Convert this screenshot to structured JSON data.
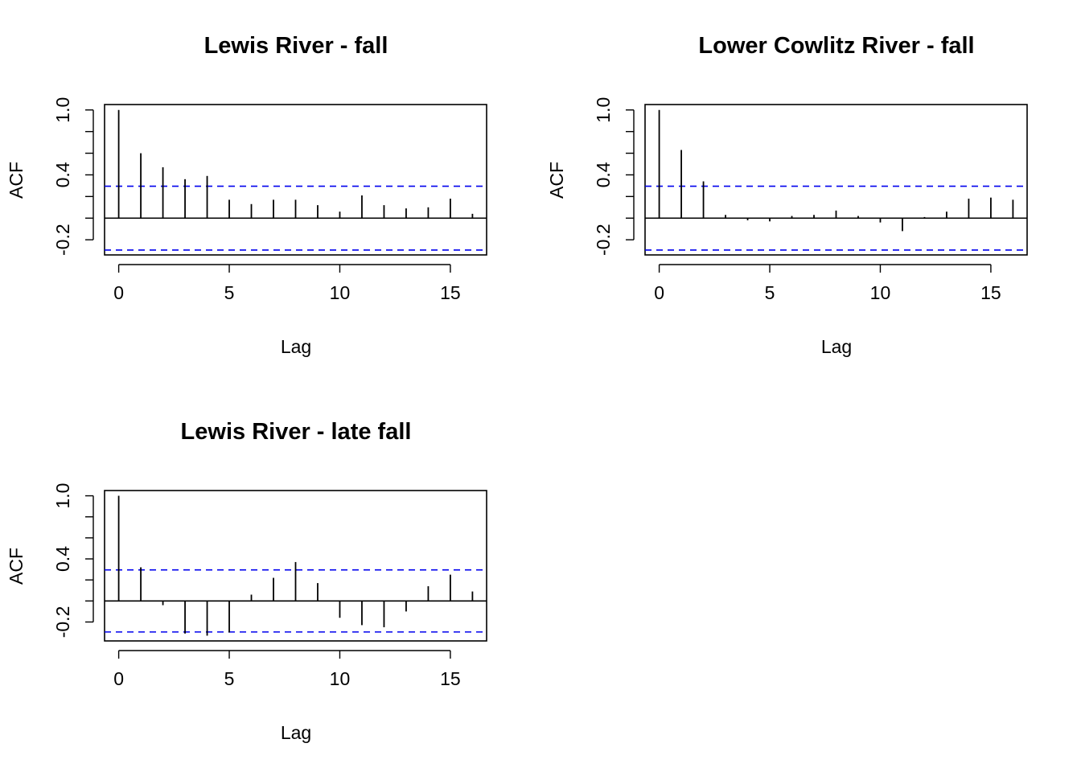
{
  "chart_data": [
    {
      "type": "bar",
      "title": "Lewis River - fall",
      "xlabel": "Lag",
      "ylabel": "ACF",
      "x_ticks": [
        "0",
        "5",
        "10",
        "15"
      ],
      "y_ticks": [
        "-0.2",
        "0.4",
        "1.0"
      ],
      "xlim": [
        -0.64,
        16.64
      ],
      "ylim": [
        -0.34,
        1.05
      ],
      "ci": 0.295,
      "x": [
        0,
        1,
        2,
        3,
        4,
        5,
        6,
        7,
        8,
        9,
        10,
        11,
        12,
        13,
        14,
        15,
        16
      ],
      "values": [
        1.0,
        0.6,
        0.47,
        0.36,
        0.39,
        0.17,
        0.13,
        0.17,
        0.17,
        0.12,
        0.06,
        0.21,
        0.12,
        0.09,
        0.1,
        0.18,
        0.04
      ],
      "ci_color": "#0000ee",
      "grid": false
    },
    {
      "type": "bar",
      "title": "Lower Cowlitz River - fall",
      "xlabel": "Lag",
      "ylabel": "ACF",
      "x_ticks": [
        "0",
        "5",
        "10",
        "15"
      ],
      "y_ticks": [
        "-0.2",
        "0.4",
        "1.0"
      ],
      "xlim": [
        -0.64,
        16.64
      ],
      "ylim": [
        -0.34,
        1.05
      ],
      "ci": 0.295,
      "x": [
        0,
        1,
        2,
        3,
        4,
        5,
        6,
        7,
        8,
        9,
        10,
        11,
        12,
        13,
        14,
        15,
        16
      ],
      "values": [
        1.0,
        0.63,
        0.34,
        0.03,
        -0.02,
        -0.03,
        0.02,
        0.03,
        0.07,
        0.02,
        -0.04,
        -0.12,
        0.01,
        0.06,
        0.18,
        0.19,
        0.17
      ],
      "ci_color": "#0000ee",
      "grid": false
    },
    {
      "type": "bar",
      "title": "Lewis River - late fall",
      "xlabel": "Lag",
      "ylabel": "ACF",
      "x_ticks": [
        "0",
        "5",
        "10",
        "15"
      ],
      "y_ticks": [
        "-0.2",
        "0.4",
        "1.0"
      ],
      "xlim": [
        -0.64,
        16.64
      ],
      "ylim": [
        -0.38,
        1.05
      ],
      "ci": 0.295,
      "x": [
        0,
        1,
        2,
        3,
        4,
        5,
        6,
        7,
        8,
        9,
        10,
        11,
        12,
        13,
        14,
        15,
        16
      ],
      "values": [
        1.0,
        0.32,
        -0.04,
        -0.31,
        -0.33,
        -0.3,
        0.06,
        0.22,
        0.37,
        0.17,
        -0.16,
        -0.23,
        -0.25,
        -0.1,
        0.14,
        0.25,
        0.09
      ],
      "ci_color": "#0000ee",
      "grid": false
    }
  ]
}
